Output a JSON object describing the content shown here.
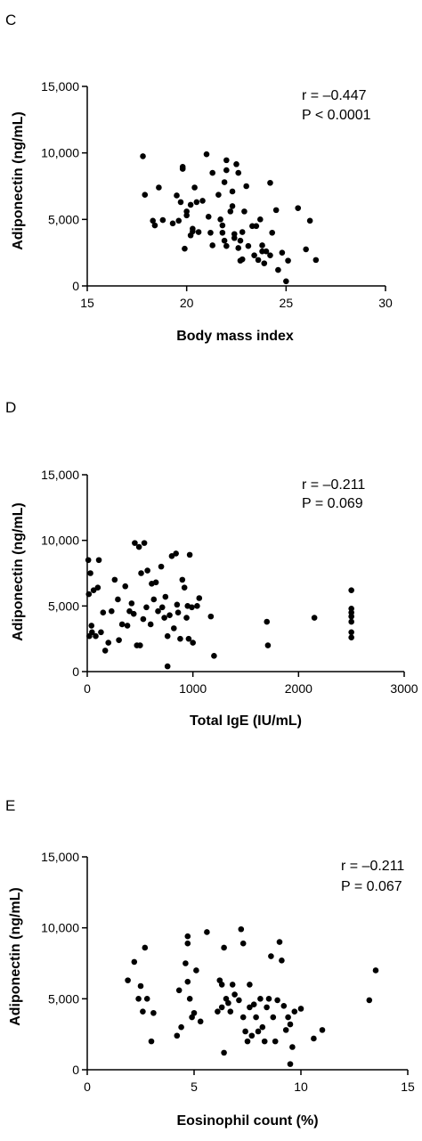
{
  "chart_data": [
    {
      "type": "scatter",
      "panel_label": "C",
      "xlabel": "Body mass index",
      "ylabel": "Adiponectin (ng/mL)",
      "xlim": [
        15,
        30
      ],
      "ylim": [
        0,
        15000
      ],
      "xticks": [
        15,
        20,
        25,
        30
      ],
      "xtick_labels": [
        "15",
        "20",
        "25",
        "30"
      ],
      "yticks": [
        0,
        5000,
        10000,
        15000
      ],
      "ytick_labels": [
        "0",
        "5,000",
        "10,000",
        "15,000"
      ],
      "annotations": [
        "r = –0.447",
        "P < 0.0001"
      ],
      "grid": false,
      "points": [
        [
          17.8,
          9750
        ],
        [
          17.9,
          6850
        ],
        [
          18.3,
          4900
        ],
        [
          18.4,
          4550
        ],
        [
          18.6,
          7400
        ],
        [
          18.8,
          4950
        ],
        [
          19.3,
          4700
        ],
        [
          19.5,
          6800
        ],
        [
          19.6,
          4900
        ],
        [
          19.7,
          6300
        ],
        [
          19.8,
          8950
        ],
        [
          19.8,
          8800
        ],
        [
          19.9,
          2800
        ],
        [
          20.0,
          5300
        ],
        [
          20.0,
          5600
        ],
        [
          20.2,
          6100
        ],
        [
          20.2,
          3800
        ],
        [
          20.3,
          4300
        ],
        [
          20.3,
          4100
        ],
        [
          20.4,
          7400
        ],
        [
          20.5,
          6300
        ],
        [
          20.6,
          4050
        ],
        [
          20.8,
          6400
        ],
        [
          21.0,
          9900
        ],
        [
          21.1,
          5200
        ],
        [
          21.2,
          4000
        ],
        [
          21.3,
          3050
        ],
        [
          21.3,
          8500
        ],
        [
          21.6,
          6850
        ],
        [
          21.7,
          5000
        ],
        [
          21.8,
          4550
        ],
        [
          21.8,
          4000
        ],
        [
          22.0,
          9450
        ],
        [
          22.0,
          8700
        ],
        [
          21.9,
          7800
        ],
        [
          21.9,
          3400
        ],
        [
          22.0,
          3000
        ],
        [
          22.2,
          5600
        ],
        [
          22.3,
          7100
        ],
        [
          22.3,
          6000
        ],
        [
          22.4,
          3900
        ],
        [
          22.4,
          3600
        ],
        [
          22.5,
          9150
        ],
        [
          22.6,
          8500
        ],
        [
          22.6,
          2850
        ],
        [
          22.7,
          3400
        ],
        [
          22.7,
          1900
        ],
        [
          22.8,
          4050
        ],
        [
          22.8,
          2000
        ],
        [
          22.9,
          5600
        ],
        [
          23.0,
          7500
        ],
        [
          23.1,
          3000
        ],
        [
          23.3,
          4500
        ],
        [
          23.4,
          2300
        ],
        [
          23.5,
          4500
        ],
        [
          23.6,
          1950
        ],
        [
          23.7,
          5000
        ],
        [
          23.8,
          3050
        ],
        [
          23.8,
          2600
        ],
        [
          23.9,
          1700
        ],
        [
          24.0,
          2600
        ],
        [
          24.2,
          7750
        ],
        [
          24.2,
          2300
        ],
        [
          24.3,
          4000
        ],
        [
          24.5,
          5700
        ],
        [
          24.6,
          1200
        ],
        [
          24.8,
          2500
        ],
        [
          25.0,
          350
        ],
        [
          25.1,
          1900
        ],
        [
          25.6,
          5850
        ],
        [
          26.0,
          2750
        ],
        [
          26.2,
          4900
        ],
        [
          26.5,
          1950
        ]
      ]
    },
    {
      "type": "scatter",
      "panel_label": "D",
      "xlabel": "Total IgE (IU/mL)",
      "ylabel": "Adiponectin (ng/mL)",
      "xlim": [
        0,
        3000
      ],
      "ylim": [
        0,
        15000
      ],
      "xticks": [
        0,
        1000,
        2000,
        3000
      ],
      "xtick_labels": [
        "0",
        "1000",
        "2000",
        "3000"
      ],
      "yticks": [
        0,
        5000,
        10000,
        15000
      ],
      "ytick_labels": [
        "0",
        "5,000",
        "10,000",
        "15,000"
      ],
      "annotations": [
        "r = –0.211",
        "P = 0.069"
      ],
      "grid": false,
      "points": [
        [
          10,
          8500
        ],
        [
          15,
          5900
        ],
        [
          20,
          2700
        ],
        [
          30,
          7500
        ],
        [
          40,
          3500
        ],
        [
          45,
          3000
        ],
        [
          60,
          6200
        ],
        [
          80,
          2700
        ],
        [
          100,
          6400
        ],
        [
          110,
          8500
        ],
        [
          130,
          3000
        ],
        [
          150,
          4500
        ],
        [
          170,
          1600
        ],
        [
          200,
          2200
        ],
        [
          230,
          4600
        ],
        [
          260,
          7000
        ],
        [
          290,
          5500
        ],
        [
          300,
          2400
        ],
        [
          330,
          3600
        ],
        [
          360,
          6500
        ],
        [
          380,
          3500
        ],
        [
          400,
          4600
        ],
        [
          420,
          5200
        ],
        [
          440,
          4400
        ],
        [
          450,
          9800
        ],
        [
          470,
          2000
        ],
        [
          490,
          9500
        ],
        [
          500,
          2000
        ],
        [
          510,
          7500
        ],
        [
          530,
          4000
        ],
        [
          540,
          9800
        ],
        [
          560,
          4900
        ],
        [
          570,
          7700
        ],
        [
          600,
          3600
        ],
        [
          610,
          6700
        ],
        [
          630,
          5500
        ],
        [
          650,
          6800
        ],
        [
          670,
          4600
        ],
        [
          700,
          8000
        ],
        [
          710,
          4900
        ],
        [
          730,
          4100
        ],
        [
          740,
          5700
        ],
        [
          760,
          2700
        ],
        [
          780,
          4300
        ],
        [
          800,
          8800
        ],
        [
          820,
          3300
        ],
        [
          840,
          9000
        ],
        [
          850,
          5100
        ],
        [
          860,
          4500
        ],
        [
          880,
          2500
        ],
        [
          900,
          7000
        ],
        [
          920,
          6400
        ],
        [
          940,
          4100
        ],
        [
          950,
          5000
        ],
        [
          960,
          2500
        ],
        [
          970,
          8900
        ],
        [
          990,
          4900
        ],
        [
          1000,
          2200
        ],
        [
          1040,
          5000
        ],
        [
          1060,
          5600
        ],
        [
          1170,
          4200
        ],
        [
          1200,
          1200
        ],
        [
          1700,
          3800
        ],
        [
          1710,
          2000
        ],
        [
          2150,
          4100
        ],
        [
          2500,
          6200
        ],
        [
          2500,
          4800
        ],
        [
          2500,
          4500
        ],
        [
          2500,
          4200
        ],
        [
          2500,
          3800
        ],
        [
          2500,
          3000
        ],
        [
          2500,
          2600
        ],
        [
          760,
          400
        ]
      ]
    },
    {
      "type": "scatter",
      "panel_label": "E",
      "xlabel": "Eosinophil count (%)",
      "ylabel": "Adiponectin (ng/mL)",
      "xlim": [
        0,
        15
      ],
      "ylim": [
        0,
        15000
      ],
      "xticks": [
        0,
        5,
        10,
        15
      ],
      "xtick_labels": [
        "0",
        "5",
        "10",
        "15"
      ],
      "yticks": [
        0,
        5000,
        10000,
        15000
      ],
      "ytick_labels": [
        "0",
        "5,000",
        "10,000",
        "15,000"
      ],
      "annotations": [
        "r = –0.211",
        "P = 0.067"
      ],
      "grid": false,
      "points": [
        [
          1.9,
          6300
        ],
        [
          2.2,
          7600
        ],
        [
          2.4,
          5000
        ],
        [
          2.5,
          5900
        ],
        [
          2.6,
          4100
        ],
        [
          2.7,
          8600
        ],
        [
          2.8,
          5000
        ],
        [
          3.0,
          2000
        ],
        [
          3.1,
          4000
        ],
        [
          4.2,
          2400
        ],
        [
          4.3,
          5600
        ],
        [
          4.4,
          3000
        ],
        [
          4.6,
          7500
        ],
        [
          4.7,
          8900
        ],
        [
          4.7,
          9400
        ],
        [
          4.7,
          6200
        ],
        [
          4.8,
          5000
        ],
        [
          4.9,
          3700
        ],
        [
          5.0,
          4000
        ],
        [
          5.1,
          7000
        ],
        [
          5.3,
          3400
        ],
        [
          5.6,
          9700
        ],
        [
          6.1,
          4100
        ],
        [
          6.2,
          6300
        ],
        [
          6.3,
          6000
        ],
        [
          6.3,
          4400
        ],
        [
          6.4,
          8600
        ],
        [
          6.4,
          1200
        ],
        [
          6.5,
          5000
        ],
        [
          6.6,
          4700
        ],
        [
          6.7,
          4100
        ],
        [
          6.8,
          6000
        ],
        [
          6.9,
          5300
        ],
        [
          7.1,
          4900
        ],
        [
          7.2,
          9900
        ],
        [
          7.3,
          8900
        ],
        [
          7.3,
          3700
        ],
        [
          7.4,
          2700
        ],
        [
          7.5,
          2000
        ],
        [
          7.6,
          6000
        ],
        [
          7.6,
          4400
        ],
        [
          7.7,
          2400
        ],
        [
          7.8,
          4600
        ],
        [
          7.9,
          3700
        ],
        [
          8.0,
          2700
        ],
        [
          8.1,
          5000
        ],
        [
          8.2,
          3000
        ],
        [
          8.3,
          2000
        ],
        [
          8.4,
          4400
        ],
        [
          8.5,
          5000
        ],
        [
          8.6,
          8000
        ],
        [
          8.7,
          3700
        ],
        [
          8.8,
          2000
        ],
        [
          8.9,
          4900
        ],
        [
          9.0,
          9000
        ],
        [
          9.1,
          7700
        ],
        [
          9.2,
          4500
        ],
        [
          9.3,
          2800
        ],
        [
          9.4,
          3700
        ],
        [
          9.5,
          3200
        ],
        [
          9.5,
          400
        ],
        [
          9.6,
          1600
        ],
        [
          9.7,
          4100
        ],
        [
          10.0,
          4300
        ],
        [
          10.6,
          2200
        ],
        [
          11.0,
          2800
        ],
        [
          13.2,
          4900
        ],
        [
          13.5,
          7000
        ]
      ]
    }
  ]
}
